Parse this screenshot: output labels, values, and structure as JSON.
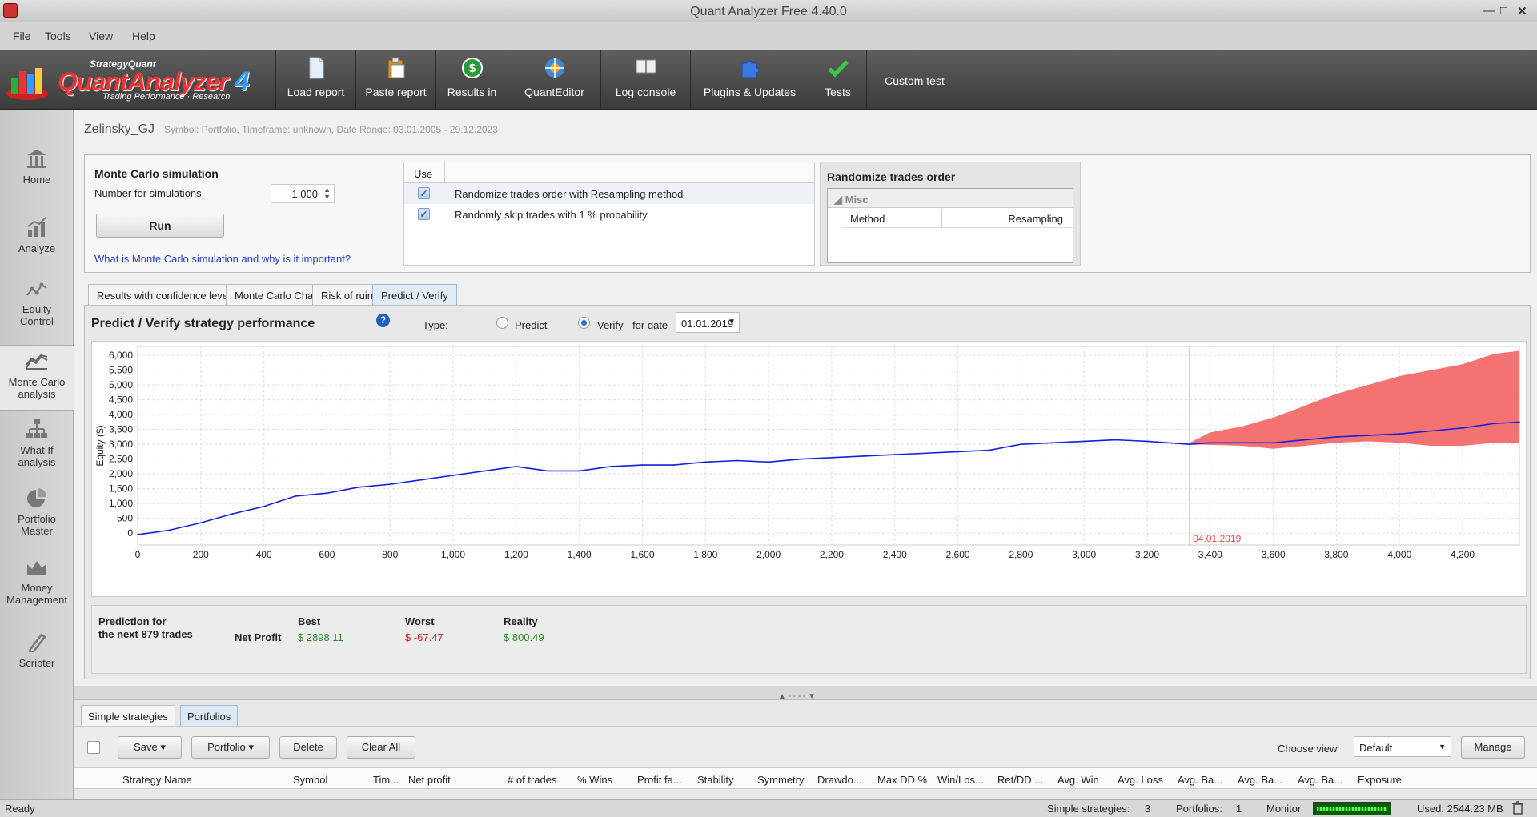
{
  "window": {
    "title": "Quant Analyzer Free 4.40.0",
    "min": "—",
    "max": "□",
    "close": "✕"
  },
  "menu": [
    "File",
    "Tools",
    "View",
    "Help"
  ],
  "logo": {
    "brand": "StrategyQuant",
    "name": "QuantAnalyzer",
    "version": "4",
    "tagline": "Trading Performance · Research"
  },
  "toolbar": [
    {
      "label": "Load report",
      "icon": "document-icon"
    },
    {
      "label": "Paste report",
      "icon": "clipboard-icon"
    },
    {
      "label": "Results in",
      "icon": "dollar-icon"
    },
    {
      "label": "QuantEditor",
      "icon": "quanteditor-icon"
    },
    {
      "label": "Log console",
      "icon": "console-icon"
    },
    {
      "label": "Plugins & Updates",
      "icon": "puzzle-icon"
    },
    {
      "label": "Tests",
      "icon": "checkmark-icon"
    },
    {
      "label": "Custom test",
      "icon": ""
    }
  ],
  "sidebar": [
    {
      "label": "Home",
      "icon": "home-icon"
    },
    {
      "label": "Analyze",
      "icon": "analyze-icon"
    },
    {
      "label": "Equity Control",
      "icon": "equity-icon"
    },
    {
      "label": "Monte Carlo analysis",
      "icon": "montecarlo-icon",
      "active": true
    },
    {
      "label": "What If analysis",
      "icon": "whatif-icon"
    },
    {
      "label": "Portfolio Master",
      "icon": "pie-icon"
    },
    {
      "label": "Money Management",
      "icon": "money-icon"
    },
    {
      "label": "Scripter",
      "icon": "scripter-icon"
    }
  ],
  "breadcrumb": {
    "name": "Zelinsky_GJ",
    "meta": "Symbol: Portfolio, Timeframe: unknown, Date Range: 03.01.2005 - 29.12.2023"
  },
  "montecarlo": {
    "title": "Monte Carlo simulation",
    "num_label": "Number for simulations",
    "num_value": "1,000",
    "run_label": "Run",
    "link": "What is Monte Carlo simulation and why is it important?",
    "use_header": "Use",
    "options": [
      {
        "checked": true,
        "text": "Randomize trades order with Resampling method"
      },
      {
        "checked": true,
        "text": "Randomly skip trades with 1 % probability"
      }
    ]
  },
  "randomize": {
    "title": "Randomize trades order",
    "group": "Misc",
    "key": "Method",
    "value": "Resampling"
  },
  "tabs": [
    "Results with confidence levels",
    "Monte Carlo Chart",
    "Risk of ruin",
    "Predict / Verify"
  ],
  "predict": {
    "title": "Predict / Verify strategy performance",
    "type_label": "Type:",
    "radio_predict": "Predict",
    "radio_verify": "Verify - for date",
    "selected": "verify",
    "date": "01.01.2019"
  },
  "chart_data": {
    "type": "area",
    "ylabel": "Equity ($)",
    "xlim": [
      0,
      4380
    ],
    "ylim": [
      -400,
      6300
    ],
    "x_ticks": [
      "0",
      "200",
      "400",
      "600",
      "800",
      "1,000",
      "1,200",
      "1,400",
      "1,600",
      "1,800",
      "2,000",
      "2,200",
      "2,400",
      "2,600",
      "2,800",
      "3,000",
      "3,200",
      "3,400",
      "3,600",
      "3,800",
      "4,000",
      "4,200"
    ],
    "x_tick_values": [
      0,
      200,
      400,
      600,
      800,
      1000,
      1200,
      1400,
      1600,
      1800,
      2000,
      2200,
      2400,
      2600,
      2800,
      3000,
      3200,
      3400,
      3600,
      3800,
      4000,
      4200
    ],
    "y_ticks": [
      "0",
      "500",
      "1,000",
      "1,500",
      "2,000",
      "2,500",
      "3,000",
      "3,500",
      "4,000",
      "4,500",
      "5,000",
      "5,500",
      "6,000"
    ],
    "y_tick_values": [
      0,
      500,
      1000,
      1500,
      2000,
      2500,
      3000,
      3500,
      4000,
      4500,
      5000,
      5500,
      6000
    ],
    "grid": true,
    "marker": {
      "x": 3335,
      "label": "04.01.2019",
      "color": "#e8484a"
    },
    "equity": {
      "name": "Equity",
      "color": "#1020e0",
      "x": [
        0,
        100,
        200,
        300,
        400,
        500,
        600,
        700,
        800,
        900,
        1000,
        1100,
        1200,
        1300,
        1400,
        1500,
        1600,
        1700,
        1800,
        1900,
        2000,
        2100,
        2200,
        2300,
        2400,
        2500,
        2600,
        2700,
        2800,
        2900,
        3000,
        3100,
        3200,
        3335,
        3400,
        3500,
        3600,
        3700,
        3800,
        3900,
        4000,
        4100,
        4200,
        4300,
        4380
      ],
      "y": [
        -50,
        100,
        350,
        650,
        900,
        1250,
        1350,
        1550,
        1650,
        1800,
        1950,
        2100,
        2250,
        2100,
        2100,
        2250,
        2300,
        2300,
        2400,
        2450,
        2400,
        2500,
        2550,
        2600,
        2650,
        2700,
        2750,
        2800,
        3000,
        3050,
        3100,
        3150,
        3100,
        3000,
        3050,
        3050,
        3050,
        3150,
        3250,
        3300,
        3350,
        3450,
        3550,
        3700,
        3750
      ]
    },
    "band": {
      "color": "#f46a6a",
      "x": [
        3335,
        3400,
        3500,
        3600,
        3700,
        3800,
        3900,
        4000,
        4100,
        4200,
        4300,
        4380
      ],
      "upper": [
        3050,
        3400,
        3600,
        3900,
        4300,
        4700,
        5000,
        5300,
        5500,
        5700,
        6050,
        6150
      ],
      "lower": [
        3000,
        2980,
        2950,
        2850,
        2950,
        3050,
        3100,
        3050,
        2950,
        2950,
        3050,
        3050
      ]
    }
  },
  "summary": {
    "pred1": "Prediction for",
    "pred2": "the next 879 trades",
    "row_label": "Net Profit",
    "best_label": "Best",
    "best": "$ 2898.11",
    "best_color": "#2a8a2a",
    "worst_label": "Worst",
    "worst": "$ -67.47",
    "worst_color": "#d02020",
    "reality_label": "Reality",
    "reality": "$ 800.49",
    "reality_color": "#2a8a2a"
  },
  "splitter": "▲ - - - - ▼",
  "bottom": {
    "tabs": [
      "Simple strategies",
      "Portfolios"
    ],
    "buttons": {
      "save": "Save",
      "portfolio": "Portfolio",
      "delete": "Delete",
      "clear": "Clear All",
      "manage": "Manage"
    },
    "choose_view": "Choose view",
    "view_value": "Default",
    "columns": [
      "Strategy Name",
      "Symbol",
      "Tim...",
      "Net profit",
      "# of trades",
      "% Wins",
      "Profit fa...",
      "Stability",
      "Symmetry",
      "Drawdo...",
      "Max DD %",
      "Win/Los...",
      "Ret/DD ...",
      "Avg. Win",
      "Avg. Loss",
      "Avg. Ba...",
      "Avg. Ba...",
      "Avg. Ba...",
      "Exposure"
    ]
  },
  "status": {
    "ready": "Ready",
    "simple_label": "Simple strategies:",
    "simple_count": "3",
    "portfolios_label": "Portfolios:",
    "portfolios_count": "1",
    "monitor": "Monitor",
    "used": "Used: 2544.23 MB"
  }
}
